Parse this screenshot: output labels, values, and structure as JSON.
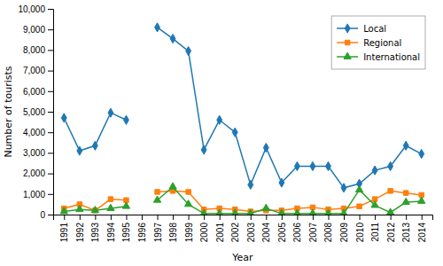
{
  "chart_data": {
    "type": "line",
    "x": [
      1991,
      1992,
      1993,
      1994,
      1995,
      1996,
      1997,
      1998,
      1999,
      2000,
      2001,
      2002,
      2003,
      2004,
      2005,
      2006,
      2007,
      2008,
      2009,
      2010,
      2011,
      2012,
      2013,
      2014
    ],
    "series": [
      {
        "name": "Local",
        "marker": "diamond",
        "values": [
          4700,
          3100,
          3350,
          4950,
          4600,
          null,
          9100,
          8550,
          7950,
          3150,
          4600,
          4000,
          1450,
          3250,
          1550,
          2350,
          2350,
          2350,
          1300,
          1500,
          2150,
          2350,
          3350,
          2950
        ]
      },
      {
        "name": "Regional",
        "marker": "square",
        "values": [
          300,
          500,
          200,
          750,
          700,
          null,
          1100,
          1150,
          1100,
          250,
          300,
          250,
          150,
          200,
          200,
          300,
          350,
          250,
          300,
          400,
          750,
          1150,
          1050,
          950
        ]
      },
      {
        "name": "International",
        "marker": "triangle",
        "values": [
          150,
          250,
          200,
          300,
          400,
          null,
          700,
          1350,
          500,
          50,
          50,
          50,
          50,
          300,
          50,
          50,
          50,
          50,
          50,
          1200,
          450,
          100,
          600,
          650
        ]
      }
    ],
    "xlabel": "Year",
    "ylabel": "Number of tourists",
    "xlim": [
      1990.3,
      2014.7
    ],
    "xticks": [
      1991,
      1992,
      1993,
      1994,
      1995,
      1996,
      1997,
      1998,
      1999,
      2000,
      2001,
      2002,
      2003,
      2004,
      2005,
      2006,
      2007,
      2008,
      2009,
      2010,
      2011,
      2012,
      2013,
      2014
    ],
    "ylim": [
      0,
      10000
    ],
    "yticks": [
      0,
      {
        "value": 1000,
        "label": "1,000"
      },
      {
        "value": 2000,
        "label": "2,000"
      },
      {
        "value": 3000,
        "label": "3,000"
      },
      {
        "value": 4000,
        "label": "4,000"
      },
      {
        "value": 5000,
        "label": "5,000"
      },
      {
        "value": 6000,
        "label": "6,000"
      },
      {
        "value": 7000,
        "label": "7,000"
      },
      {
        "value": 8000,
        "label": "8,000"
      },
      {
        "value": 9000,
        "label": "9,000"
      },
      {
        "value": 10000,
        "label": "10,000"
      }
    ],
    "legend": "upper right",
    "grid": false
  }
}
